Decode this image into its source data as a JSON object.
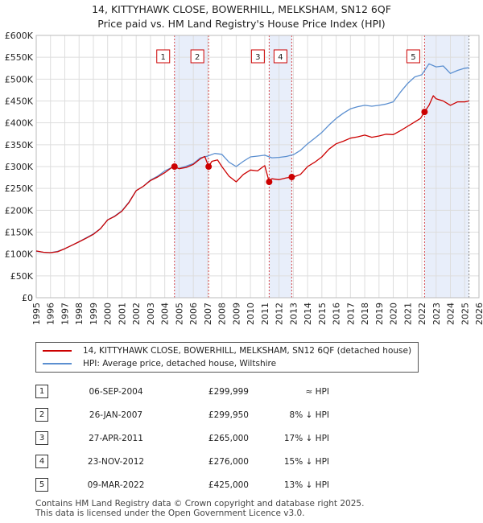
{
  "title": "14, KITTYHAWK CLOSE, BOWERHILL, MELKSHAM, SN12 6QF",
  "subtitle": "Price paid vs. HM Land Registry's House Price Index (HPI)",
  "colors": {
    "property": "#cc0000",
    "hpi": "#5b8fd0",
    "shade": "#e8eefa",
    "grid": "#dddddd"
  },
  "chart_data": {
    "type": "line",
    "title": "14, KITTYHAWK CLOSE, BOWERHILL, MELKSHAM, SN12 6QF",
    "subtitle": "Price paid vs. HM Land Registry's House Price Index (HPI)",
    "xlim": [
      1995,
      2026
    ],
    "ylim": [
      0,
      600000
    ],
    "x_ticks": [
      "1995",
      "1996",
      "1997",
      "1998",
      "1999",
      "2000",
      "2001",
      "2002",
      "2003",
      "2004",
      "2005",
      "2006",
      "2007",
      "2008",
      "2009",
      "2010",
      "2011",
      "2012",
      "2013",
      "2014",
      "2015",
      "2016",
      "2017",
      "2018",
      "2019",
      "2020",
      "2021",
      "2022",
      "2023",
      "2024",
      "2025",
      "2026"
    ],
    "y_ticks": [
      {
        "value": 0,
        "label": "£0"
      },
      {
        "value": 50000,
        "label": "£50K"
      },
      {
        "value": 100000,
        "label": "£100K"
      },
      {
        "value": 150000,
        "label": "£150K"
      },
      {
        "value": 200000,
        "label": "£200K"
      },
      {
        "value": 250000,
        "label": "£250K"
      },
      {
        "value": 300000,
        "label": "£300K"
      },
      {
        "value": 350000,
        "label": "£350K"
      },
      {
        "value": 400000,
        "label": "£400K"
      },
      {
        "value": 450000,
        "label": "£450K"
      },
      {
        "value": 500000,
        "label": "£500K"
      },
      {
        "value": 550000,
        "label": "£550K"
      },
      {
        "value": 600000,
        "label": "£600K"
      }
    ],
    "series": [
      {
        "name": "14, KITTYHAWK CLOSE, BOWERHILL, MELKSHAM, SN12 6QF (detached house)",
        "color": "#cc0000",
        "x": [
          1995.0,
          1995.5,
          1996.0,
          1996.5,
          1997.0,
          1997.5,
          1998.0,
          1998.5,
          1999.0,
          1999.5,
          2000.0,
          2000.5,
          2001.0,
          2001.5,
          2002.0,
          2002.5,
          2003.0,
          2003.5,
          2004.0,
          2004.5,
          2004.68,
          2005.0,
          2005.5,
          2006.0,
          2006.5,
          2006.8,
          2007.07,
          2007.3,
          2007.7,
          2008.0,
          2008.5,
          2009.0,
          2009.5,
          2010.0,
          2010.5,
          2010.9,
          2011.0,
          2011.31,
          2011.5,
          2012.0,
          2012.5,
          2012.89,
          2013.0,
          2013.5,
          2014.0,
          2014.5,
          2015.0,
          2015.5,
          2016.0,
          2016.5,
          2017.0,
          2017.5,
          2018.0,
          2018.5,
          2019.0,
          2019.5,
          2020.0,
          2020.5,
          2021.0,
          2021.5,
          2021.9,
          2022.19,
          2022.5,
          2022.8,
          2023.0,
          2023.5,
          2024.0,
          2024.5,
          2025.0,
          2025.3
        ],
        "y": [
          107000,
          104000,
          103000,
          105000,
          112000,
          120000,
          128000,
          136000,
          145000,
          158000,
          178000,
          186000,
          198000,
          218000,
          245000,
          255000,
          268000,
          276000,
          286000,
          298000,
          299999,
          295000,
          298000,
          305000,
          318000,
          323000,
          299950,
          312000,
          315000,
          300000,
          278000,
          265000,
          282000,
          292000,
          290000,
          300000,
          302000,
          265000,
          272000,
          270000,
          274000,
          276000,
          276000,
          282000,
          300000,
          310000,
          322000,
          340000,
          352000,
          358000,
          365000,
          368000,
          372000,
          367000,
          370000,
          374000,
          373000,
          382000,
          392000,
          402000,
          410000,
          425000,
          440000,
          462000,
          455000,
          450000,
          440000,
          448000,
          448000,
          450000
        ]
      },
      {
        "name": "HPI: Average price, detached house, Wiltshire",
        "color": "#5b8fd0",
        "x": [
          1995.0,
          1995.5,
          1996.0,
          1996.5,
          1997.0,
          1997.5,
          1998.0,
          1998.5,
          1999.0,
          1999.5,
          2000.0,
          2000.5,
          2001.0,
          2001.5,
          2002.0,
          2002.5,
          2003.0,
          2003.5,
          2004.0,
          2004.5,
          2005.0,
          2005.5,
          2006.0,
          2006.5,
          2007.0,
          2007.5,
          2008.0,
          2008.5,
          2009.0,
          2009.5,
          2010.0,
          2010.5,
          2011.0,
          2011.5,
          2012.0,
          2012.5,
          2013.0,
          2013.5,
          2014.0,
          2014.5,
          2015.0,
          2015.5,
          2016.0,
          2016.5,
          2017.0,
          2017.5,
          2018.0,
          2018.5,
          2019.0,
          2019.5,
          2020.0,
          2020.5,
          2021.0,
          2021.5,
          2022.0,
          2022.5,
          2023.0,
          2023.5,
          2024.0,
          2024.5,
          2025.0,
          2025.3
        ],
        "y": [
          106000,
          104000,
          103000,
          106000,
          112000,
          120000,
          128000,
          137000,
          146000,
          158000,
          178000,
          187000,
          199000,
          219000,
          245000,
          255000,
          269000,
          278000,
          290000,
          298000,
          296000,
          301000,
          307000,
          320000,
          324000,
          330000,
          328000,
          310000,
          300000,
          312000,
          322000,
          324000,
          326000,
          320000,
          321000,
          323000,
          327000,
          337000,
          352000,
          365000,
          378000,
          395000,
          410000,
          422000,
          432000,
          437000,
          440000,
          438000,
          440000,
          443000,
          448000,
          470000,
          490000,
          505000,
          510000,
          535000,
          528000,
          530000,
          513000,
          520000,
          525000,
          526000
        ]
      }
    ],
    "sales": [
      {
        "n": 1,
        "x": 2004.68,
        "y": 299999
      },
      {
        "n": 2,
        "x": 2007.07,
        "y": 299950
      },
      {
        "n": 3,
        "x": 2011.31,
        "y": 265000
      },
      {
        "n": 4,
        "x": 2012.89,
        "y": 276000
      },
      {
        "n": 5,
        "x": 2022.19,
        "y": 425000
      }
    ],
    "shaded_ranges": [
      [
        2004.68,
        2007.07
      ],
      [
        2011.31,
        2012.89
      ],
      [
        2022.19,
        2025.3
      ]
    ]
  },
  "legend": {
    "property": "14, KITTYHAWK CLOSE, BOWERHILL, MELKSHAM, SN12 6QF (detached house)",
    "hpi": "HPI: Average price, detached house, Wiltshire"
  },
  "transactions": [
    {
      "n": "1",
      "date": "06-SEP-2004",
      "price": "£299,999",
      "hpi": "≈ HPI"
    },
    {
      "n": "2",
      "date": "26-JAN-2007",
      "price": "£299,950",
      "hpi": "8% ↓ HPI"
    },
    {
      "n": "3",
      "date": "27-APR-2011",
      "price": "£265,000",
      "hpi": "17% ↓ HPI"
    },
    {
      "n": "4",
      "date": "23-NOV-2012",
      "price": "£276,000",
      "hpi": "15% ↓ HPI"
    },
    {
      "n": "5",
      "date": "09-MAR-2022",
      "price": "£425,000",
      "hpi": "13% ↓ HPI"
    }
  ],
  "footer": {
    "line1": "Contains HM Land Registry data © Crown copyright and database right 2025.",
    "line2": "This data is licensed under the Open Government Licence v3.0."
  }
}
